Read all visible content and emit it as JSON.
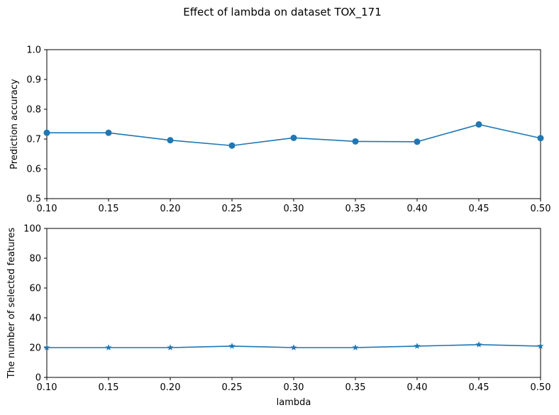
{
  "figure_title": "Effect of lambda on dataset TOX_171",
  "series_color": "#1f77b4",
  "chart_data": [
    {
      "type": "line",
      "marker": "circle",
      "x": [
        0.1,
        0.15,
        0.2,
        0.25,
        0.3,
        0.35,
        0.4,
        0.45,
        0.5
      ],
      "series": [
        {
          "values": [
            0.721,
            0.721,
            0.696,
            0.678,
            0.704,
            0.692,
            0.691,
            0.749,
            0.703
          ]
        }
      ],
      "xlabel": "",
      "ylabel": "Prediction accuracy",
      "xlim": [
        0.1,
        0.5
      ],
      "ylim": [
        0.5,
        1.0
      ],
      "xticks": [
        "0.10",
        "0.15",
        "0.20",
        "0.25",
        "0.30",
        "0.35",
        "0.40",
        "0.45",
        "0.50"
      ],
      "yticks": [
        "0.5",
        "0.6",
        "0.7",
        "0.8",
        "0.9",
        "1.0"
      ],
      "grid": false
    },
    {
      "type": "line",
      "marker": "star",
      "x": [
        0.1,
        0.15,
        0.2,
        0.25,
        0.3,
        0.35,
        0.4,
        0.45,
        0.5
      ],
      "series": [
        {
          "values": [
            20,
            20,
            20,
            21,
            20,
            20,
            21,
            22,
            21
          ]
        }
      ],
      "xlabel": "lambda",
      "ylabel": "The number of selected features",
      "xlim": [
        0.1,
        0.5
      ],
      "ylim": [
        0,
        100
      ],
      "xticks": [
        "0.10",
        "0.15",
        "0.20",
        "0.25",
        "0.30",
        "0.35",
        "0.40",
        "0.45",
        "0.50"
      ],
      "yticks": [
        "0",
        "20",
        "40",
        "60",
        "80",
        "100"
      ],
      "grid": false
    }
  ]
}
